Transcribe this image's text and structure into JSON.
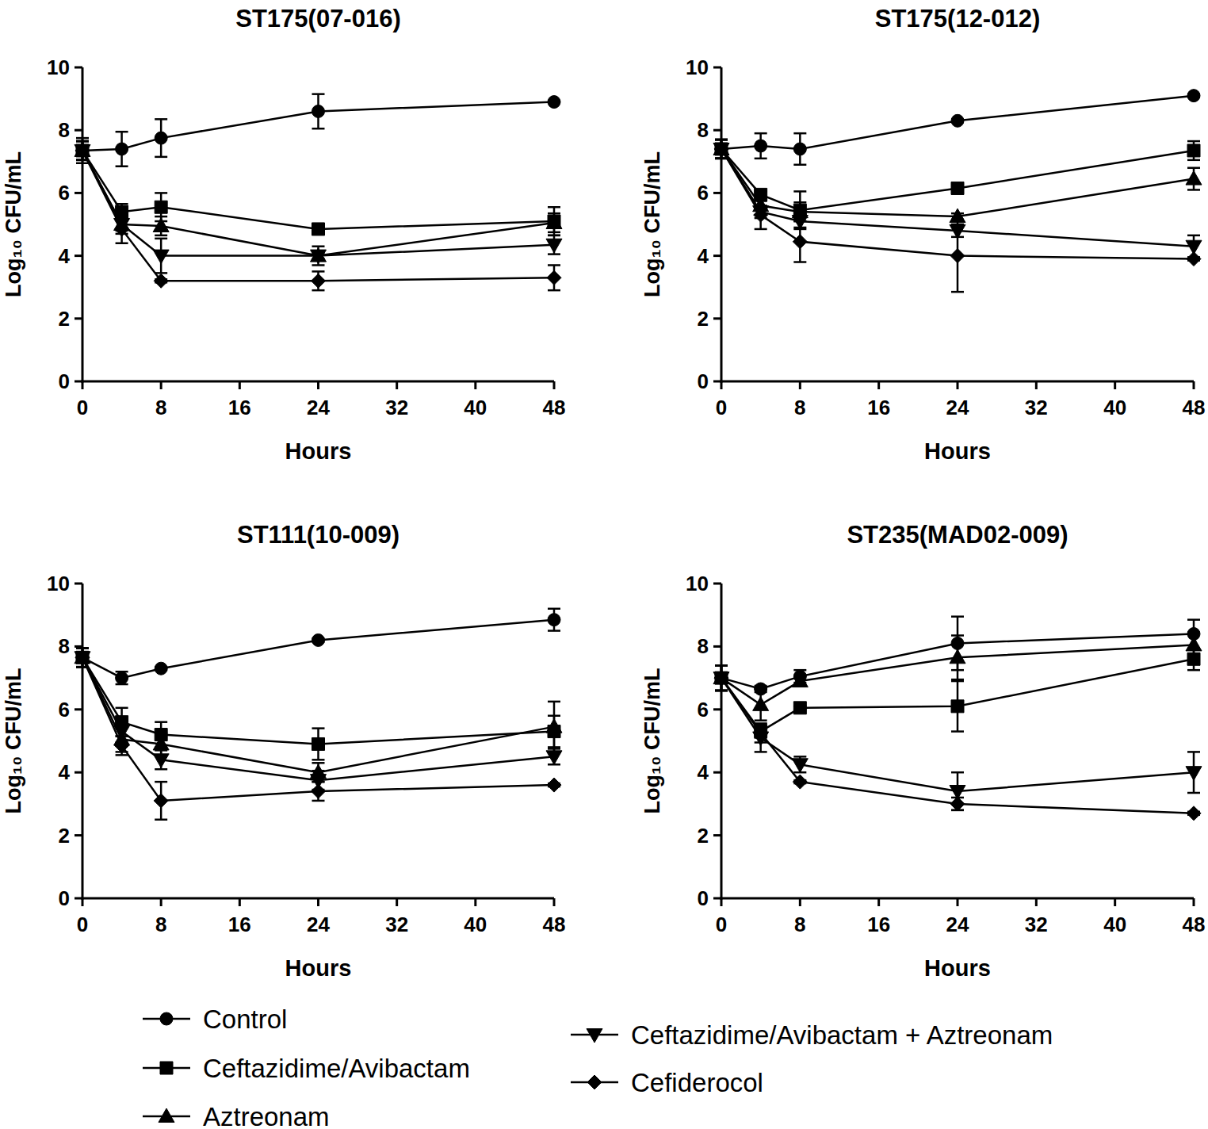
{
  "chart_data": [
    {
      "type": "line",
      "title": "ST175(07-016)",
      "x_label": "Hours",
      "y_label": "Log₁₀ CFU/mL",
      "x": [
        0,
        4,
        8,
        24,
        48
      ],
      "xlim": [
        0,
        48
      ],
      "xticks": [
        0,
        8,
        16,
        24,
        32,
        40,
        48
      ],
      "ylim": [
        0,
        10
      ],
      "yticks": [
        0,
        2,
        4,
        6,
        8,
        10
      ],
      "legend": "bottom",
      "series": [
        {
          "name": "Control",
          "color": "#000000",
          "marker": "circle",
          "values": [
            7.35,
            7.4,
            7.75,
            8.6,
            8.9
          ],
          "errors": [
            0.4,
            0.55,
            0.6,
            0.55,
            0
          ]
        },
        {
          "name": "Ceftazidime/Avibactam",
          "color": "#000000",
          "marker": "square",
          "values": [
            7.35,
            5.4,
            5.55,
            4.85,
            5.1
          ],
          "errors": [
            0.3,
            0.25,
            0.45,
            0.1,
            0.45
          ]
        },
        {
          "name": "Aztreonam",
          "color": "#000000",
          "marker": "triangle-up",
          "values": [
            7.35,
            5.0,
            4.95,
            4.0,
            5.05
          ],
          "errors": [
            0.3,
            0.3,
            0.3,
            0.1,
            0.3
          ]
        },
        {
          "name": "Ceftazidime/Avibactam + Aztreonam",
          "color": "#000000",
          "marker": "triangle-down",
          "values": [
            7.35,
            5.0,
            4.0,
            4.0,
            4.35
          ],
          "errors": [
            0.3,
            0.2,
            0.55,
            0.3,
            0.3
          ]
        },
        {
          "name": "Cefiderocol",
          "color": "#000000",
          "marker": "diamond",
          "values": [
            7.35,
            4.85,
            3.2,
            3.2,
            3.3
          ],
          "errors": [
            0.3,
            0.45,
            0.05,
            0.3,
            0.4
          ]
        }
      ]
    },
    {
      "type": "line",
      "title": "ST175(12-012)",
      "x_label": "Hours",
      "y_label": "Log₁₀ CFU/mL",
      "x": [
        0,
        4,
        8,
        24,
        48
      ],
      "xlim": [
        0,
        48
      ],
      "xticks": [
        0,
        8,
        16,
        24,
        32,
        40,
        48
      ],
      "ylim": [
        0,
        10
      ],
      "yticks": [
        0,
        2,
        4,
        6,
        8,
        10
      ],
      "series": [
        {
          "name": "Control",
          "color": "#000000",
          "marker": "circle",
          "values": [
            7.4,
            7.5,
            7.4,
            8.3,
            9.1
          ],
          "errors": [
            0.3,
            0.4,
            0.5,
            0.05,
            0.05
          ]
        },
        {
          "name": "Ceftazidime/Avibactam",
          "color": "#000000",
          "marker": "square",
          "values": [
            7.4,
            5.95,
            5.45,
            6.15,
            7.35
          ],
          "errors": [
            0.3,
            0.1,
            0.6,
            0.1,
            0.3
          ]
        },
        {
          "name": "Aztreonam",
          "color": "#000000",
          "marker": "triangle-up",
          "values": [
            7.4,
            5.6,
            5.4,
            5.25,
            6.45
          ],
          "errors": [
            0.3,
            0.15,
            0.3,
            0.1,
            0.35
          ]
        },
        {
          "name": "Ceftazidime/Avibactam + Aztreonam",
          "color": "#000000",
          "marker": "triangle-down",
          "values": [
            7.4,
            5.4,
            5.1,
            4.8,
            4.3
          ],
          "errors": [
            0.3,
            0.2,
            0.2,
            0.2,
            0.35
          ]
        },
        {
          "name": "Cefiderocol",
          "color": "#000000",
          "marker": "diamond",
          "values": [
            7.4,
            5.3,
            4.45,
            4.0,
            3.9
          ],
          "errors": [
            0.3,
            0.45,
            0.65,
            1.15,
            0.05
          ]
        }
      ]
    },
    {
      "type": "line",
      "title": "ST111(10-009)",
      "x_label": "Hours",
      "y_label": "Log₁₀ CFU/mL",
      "x": [
        0,
        4,
        8,
        24,
        48
      ],
      "xlim": [
        0,
        48
      ],
      "xticks": [
        0,
        8,
        16,
        24,
        32,
        40,
        48
      ],
      "ylim": [
        0,
        10
      ],
      "yticks": [
        0,
        2,
        4,
        6,
        8,
        10
      ],
      "series": [
        {
          "name": "Control",
          "color": "#000000",
          "marker": "circle",
          "values": [
            7.65,
            7.0,
            7.3,
            8.2,
            8.85
          ],
          "errors": [
            0.3,
            0.2,
            0.05,
            0.05,
            0.35
          ]
        },
        {
          "name": "Ceftazidime/Avibactam",
          "color": "#000000",
          "marker": "square",
          "values": [
            7.65,
            5.6,
            5.2,
            4.9,
            5.3
          ],
          "errors": [
            0.3,
            0.45,
            0.4,
            0.5,
            0.5
          ]
        },
        {
          "name": "Aztreonam",
          "color": "#000000",
          "marker": "triangle-up",
          "values": [
            7.65,
            5.05,
            4.9,
            4.0,
            5.45
          ],
          "errors": [
            0.3,
            0.4,
            0.35,
            0.3,
            0.8
          ]
        },
        {
          "name": "Ceftazidime/Avibactam + Aztreonam",
          "color": "#000000",
          "marker": "triangle-down",
          "values": [
            7.65,
            5.3,
            4.4,
            3.75,
            4.5
          ],
          "errors": [
            0.3,
            0.35,
            0.3,
            0.3,
            0.25
          ]
        },
        {
          "name": "Cefiderocol",
          "color": "#000000",
          "marker": "diamond",
          "values": [
            7.65,
            4.85,
            3.1,
            3.4,
            3.6
          ],
          "errors": [
            0.3,
            0.3,
            0.6,
            0.3,
            0.05
          ]
        }
      ]
    },
    {
      "type": "line",
      "title": "ST235(MAD02-009)",
      "x_label": "Hours",
      "y_label": "Log₁₀ CFU/mL",
      "x": [
        0,
        4,
        8,
        24,
        48
      ],
      "xlim": [
        0,
        48
      ],
      "xticks": [
        0,
        8,
        16,
        24,
        32,
        40,
        48
      ],
      "ylim": [
        0,
        10
      ],
      "yticks": [
        0,
        2,
        4,
        6,
        8,
        10
      ],
      "series": [
        {
          "name": "Control",
          "color": "#000000",
          "marker": "circle",
          "values": [
            7.0,
            6.65,
            7.05,
            8.1,
            8.4
          ],
          "errors": [
            0.4,
            0.1,
            0.2,
            0.85,
            0.45
          ]
        },
        {
          "name": "Ceftazidime/Avibactam",
          "color": "#000000",
          "marker": "square",
          "values": [
            7.0,
            5.3,
            6.05,
            6.1,
            7.6
          ],
          "errors": [
            0.4,
            0.2,
            0.05,
            0.8,
            0.35
          ]
        },
        {
          "name": "Aztreonam",
          "color": "#000000",
          "marker": "triangle-up",
          "values": [
            7.0,
            6.15,
            6.9,
            7.65,
            8.05
          ],
          "errors": [
            0.4,
            0.5,
            0.15,
            0.7,
            0.4
          ]
        },
        {
          "name": "Ceftazidime/Avibactam + Aztreonam",
          "color": "#000000",
          "marker": "triangle-down",
          "values": [
            7.0,
            5.1,
            4.25,
            3.4,
            4.0
          ],
          "errors": [
            0.4,
            0.45,
            0.25,
            0.6,
            0.65
          ]
        },
        {
          "name": "Cefiderocol",
          "color": "#000000",
          "marker": "diamond",
          "values": [
            7.0,
            5.25,
            3.7,
            3.0,
            2.7
          ],
          "errors": [
            0.4,
            0.3,
            0.05,
            0.2,
            0.05
          ]
        }
      ]
    }
  ]
}
